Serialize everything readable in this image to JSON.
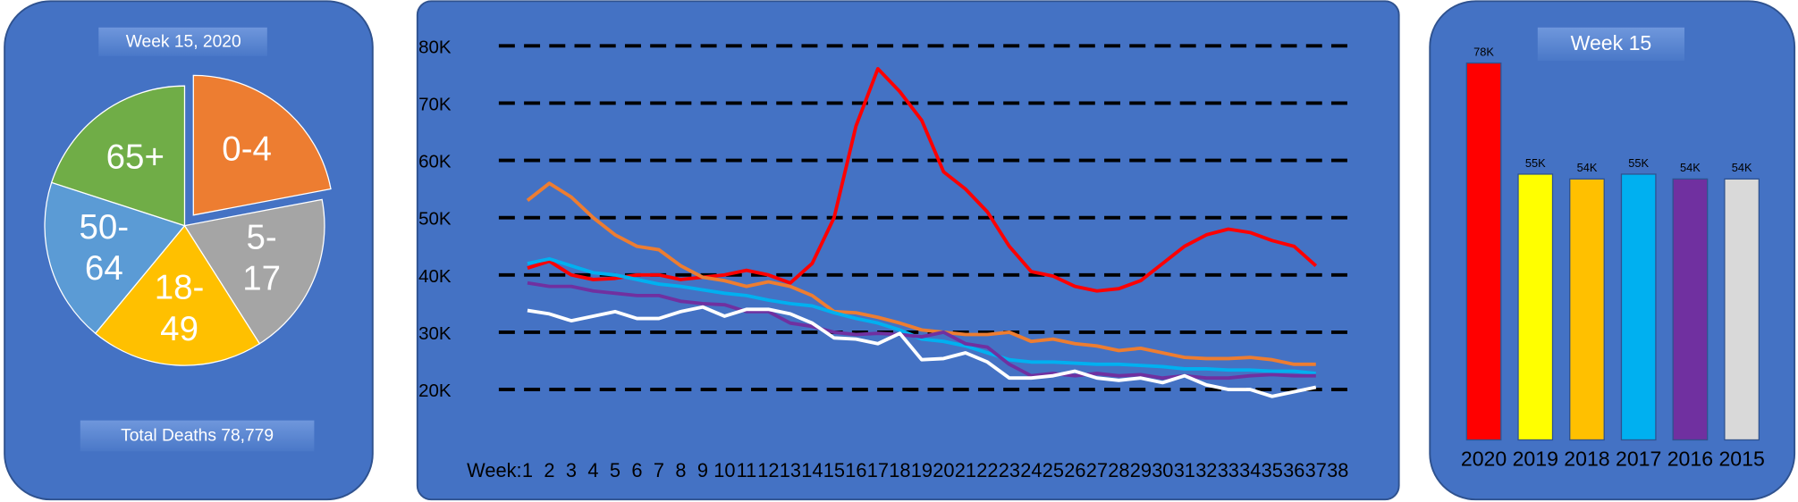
{
  "chart_data": [
    {
      "type": "pie",
      "title": "Week 15,  2020",
      "annotation": "Total Deaths 78,779",
      "categories": [
        "0-4",
        "5-17",
        "18-49",
        "50-64",
        "65+"
      ],
      "values": [
        22,
        19,
        20,
        19,
        20
      ],
      "colors": [
        "#ed7d31",
        "#a5a5a5",
        "#ffc000",
        "#5b9bd5",
        "#70ad47"
      ],
      "exploded": "0-4"
    },
    {
      "type": "line",
      "x_label": "Week:",
      "x": [
        1,
        2,
        3,
        4,
        5,
        6,
        7,
        8,
        9,
        10,
        11,
        12,
        13,
        14,
        15,
        16,
        17,
        18,
        19,
        20,
        21,
        22,
        23,
        24,
        25,
        26,
        27,
        28,
        29,
        30,
        31,
        32,
        33,
        34,
        35,
        36,
        37
      ],
      "xlim": [
        1,
        38
      ],
      "xticks": [
        1,
        2,
        3,
        4,
        5,
        6,
        7,
        8,
        9,
        10,
        11,
        12,
        13,
        14,
        15,
        16,
        17,
        18,
        19,
        20,
        21,
        22,
        23,
        24,
        25,
        26,
        27,
        28,
        29,
        30,
        31,
        32,
        33,
        34,
        35,
        36,
        37,
        38
      ],
      "ylim": [
        12000,
        86000
      ],
      "yticks": [
        {
          "value": 20000,
          "label": "20K"
        },
        {
          "value": 30000,
          "label": "30K"
        },
        {
          "value": 40000,
          "label": "40K"
        },
        {
          "value": 50000,
          "label": "50K"
        },
        {
          "value": 60000,
          "label": "60K"
        },
        {
          "value": 70000,
          "label": "70K"
        },
        {
          "value": 80000,
          "label": "80K"
        }
      ],
      "grid": true,
      "series": [
        {
          "color": "#ff0000",
          "values": [
            41200,
            42400,
            40000,
            39200,
            39400,
            40000,
            40000,
            39200,
            39600,
            40000,
            40800,
            40000,
            38600,
            42000,
            50000,
            66000,
            76000,
            72000,
            67000,
            58000,
            55000,
            51000,
            45000,
            40600,
            39800,
            38000,
            37200,
            37600,
            39000,
            42000,
            45000,
            47000,
            48000,
            47400,
            46000,
            45000,
            41600
          ]
        },
        {
          "color": "#ed7d31",
          "values": [
            53000,
            56000,
            53600,
            50000,
            47000,
            45000,
            44400,
            41600,
            39600,
            39000,
            38000,
            38800,
            38000,
            36400,
            33600,
            33400,
            32600,
            31600,
            30400,
            30000,
            29600,
            29600,
            30000,
            28400,
            28800,
            28000,
            27600,
            26800,
            27200,
            26400,
            25600,
            25400,
            25400,
            25600,
            25200,
            24400,
            24400
          ]
        },
        {
          "color": "#00b0f0",
          "values": [
            42000,
            42800,
            41600,
            40400,
            40000,
            39200,
            38400,
            38000,
            37400,
            36800,
            36400,
            35600,
            35000,
            34600,
            33400,
            32400,
            31600,
            30400,
            28800,
            28400,
            27600,
            26400,
            25200,
            24800,
            24800,
            24600,
            24400,
            24400,
            24200,
            24000,
            23600,
            23600,
            23400,
            23400,
            23200,
            23200,
            22800
          ]
        },
        {
          "color": "#7030a0",
          "values": [
            38600,
            38000,
            38000,
            37200,
            36800,
            36400,
            36400,
            35400,
            35000,
            34800,
            33600,
            33600,
            31600,
            31000,
            30000,
            29600,
            29800,
            29600,
            29200,
            30000,
            28000,
            27400,
            24400,
            22400,
            22800,
            22400,
            22800,
            22400,
            22600,
            22000,
            22400,
            22000,
            22000,
            22400,
            22600,
            22400,
            22400
          ]
        },
        {
          "color": "#ffffff",
          "values": [
            33800,
            33200,
            32000,
            32800,
            33600,
            32400,
            32400,
            33600,
            34400,
            32800,
            34000,
            34000,
            33200,
            31600,
            29000,
            28800,
            28000,
            29800,
            25200,
            25400,
            26400,
            24800,
            22000,
            22000,
            22400,
            23200,
            22000,
            21600,
            22000,
            21200,
            22400,
            20800,
            20000,
            20000,
            18800,
            19600,
            20400
          ]
        }
      ]
    },
    {
      "type": "bar",
      "title": "Week 15",
      "categories": [
        "2020",
        "2019",
        "2018",
        "2017",
        "2016",
        "2015"
      ],
      "values": [
        78000,
        55000,
        54000,
        55000,
        54000,
        54000
      ],
      "value_labels": [
        "78K",
        "55K",
        "54K",
        "55K",
        "54K",
        "54K"
      ],
      "colors": [
        "#ff0000",
        "#ffff00",
        "#ffc000",
        "#00b0f0",
        "#7030a0",
        "#d9d9d9"
      ]
    }
  ]
}
